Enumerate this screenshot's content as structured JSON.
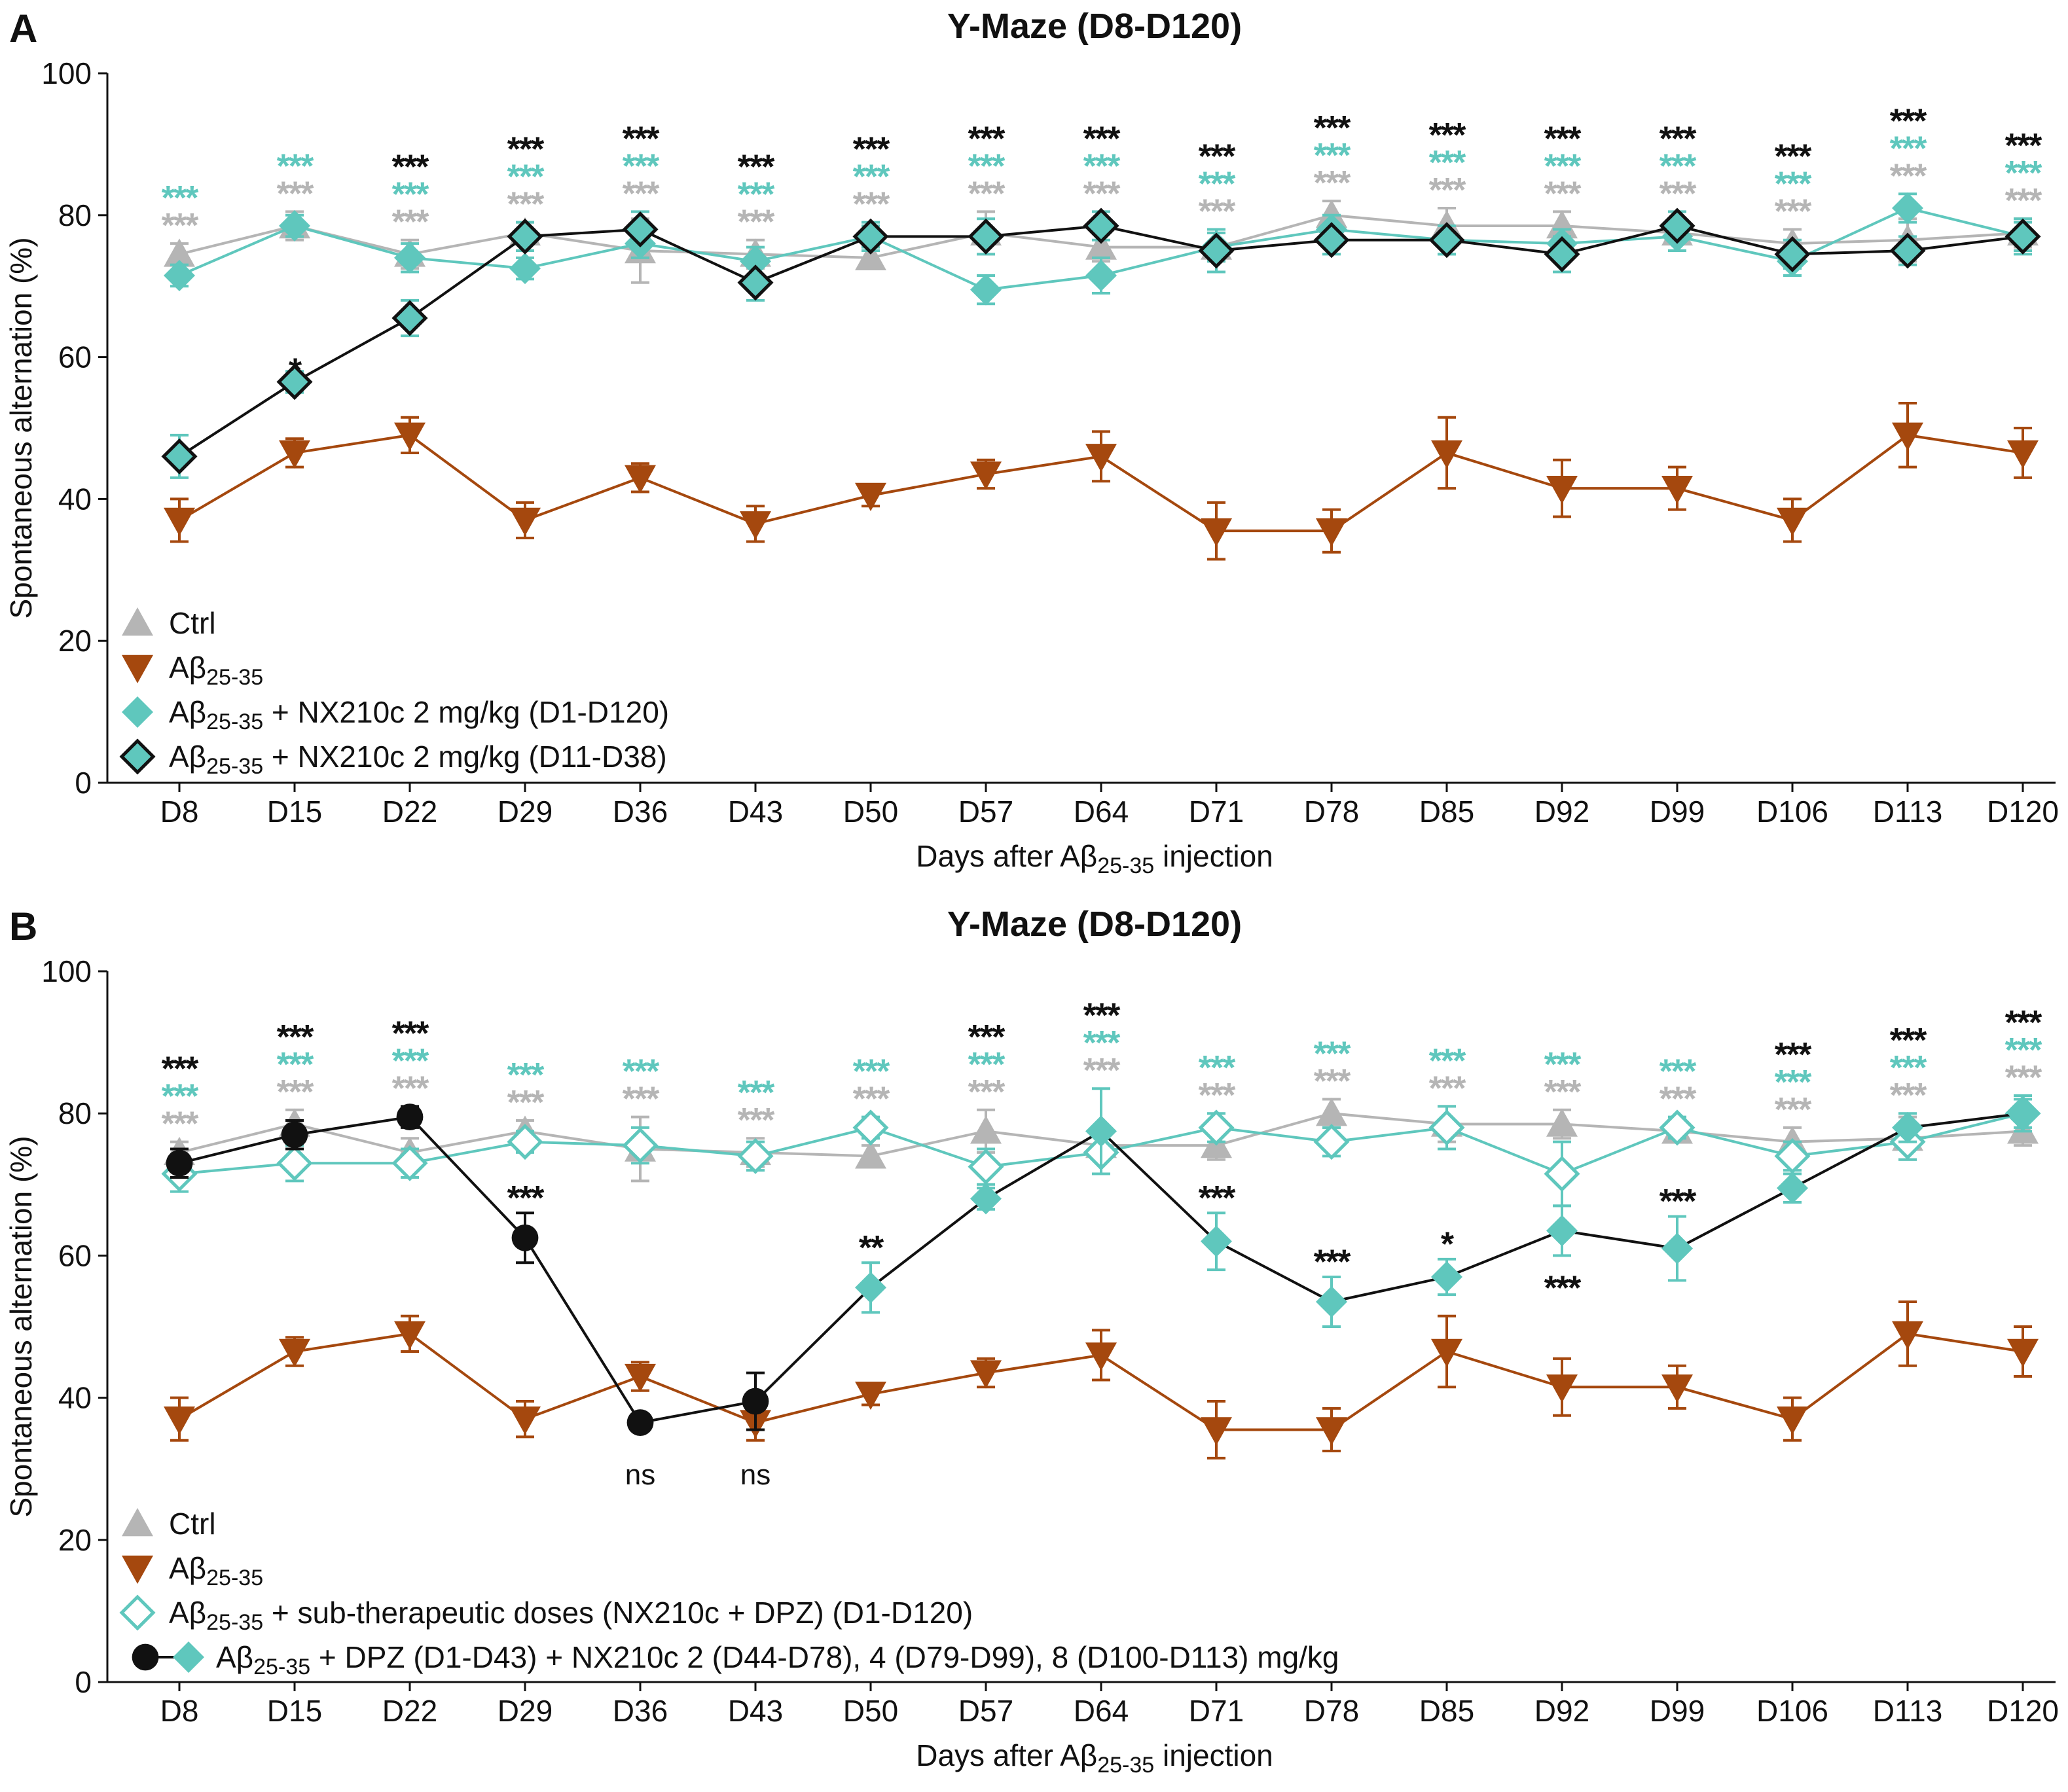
{
  "chart_data": [
    {
      "panel_label": "A",
      "type": "line",
      "title": "Y-Maze (D8-D120)",
      "ylabel": "Spontaneous alternation (%)",
      "xlabel": {
        "pre": "Days after Aβ",
        "sub": "25-35",
        "post": " injection"
      },
      "ylim": [
        0,
        100
      ],
      "yticks": [
        0,
        20,
        40,
        60,
        80,
        100
      ],
      "categories": [
        "D8",
        "D15",
        "D22",
        "D29",
        "D36",
        "D43",
        "D50",
        "D57",
        "D64",
        "D71",
        "D78",
        "D85",
        "D92",
        "D99",
        "D106",
        "D113",
        "D120"
      ],
      "series": [
        {
          "key": "ctrl",
          "name": "Ctrl",
          "legend": {
            "pre": "Ctrl",
            "sub": "",
            "post": ""
          },
          "color": "#b5b5b5",
          "marker": "triangle-up",
          "values": [
            74.5,
            78.5,
            74.5,
            77.5,
            75,
            74.5,
            74,
            77.5,
            75.5,
            75.5,
            80,
            78.5,
            78.5,
            77.5,
            76,
            76.5,
            77.5
          ],
          "errors": [
            1.5,
            2,
            2,
            1.5,
            4.5,
            2,
            1.5,
            3,
            2,
            2,
            2,
            2.5,
            2,
            1.5,
            2,
            3,
            2
          ]
        },
        {
          "key": "abeta",
          "name": "Aβ25-35",
          "legend": {
            "pre": "Aβ",
            "sub": "25-35",
            "post": ""
          },
          "color": "#a5480e",
          "marker": "triangle-down",
          "values": [
            37,
            46.5,
            49,
            37,
            43,
            36.5,
            40.5,
            43.5,
            46,
            35.5,
            35.5,
            46.5,
            41.5,
            41.5,
            37,
            49,
            46.5
          ],
          "errors": [
            3,
            2,
            2.5,
            2.5,
            2,
            2.5,
            1.5,
            2,
            3.5,
            4,
            3,
            5,
            4,
            3,
            3,
            4.5,
            3.5
          ]
        },
        {
          "key": "nx_full",
          "name": "Aβ25-35 + NX210c 2 mg/kg (D1-D120)",
          "legend": {
            "pre": "Aβ",
            "sub": "25-35",
            "post": " + NX210c 2 mg/kg (D1-D120)"
          },
          "color": "#5fc7bd",
          "marker": "diamond",
          "values": [
            71.5,
            78.5,
            74,
            72.5,
            76,
            73.5,
            77,
            69.5,
            71.5,
            75.5,
            78,
            76.5,
            76,
            77,
            73.5,
            81,
            77
          ],
          "errors": [
            1.5,
            1.5,
            2,
            1.5,
            2,
            2,
            1.5,
            2,
            2.5,
            2,
            2,
            2,
            2,
            2,
            2,
            2,
            2
          ]
        },
        {
          "key": "nx_short",
          "name": "Aβ25-35 + NX210c 2 mg/kg (D11-D38)",
          "legend": {
            "pre": "Aβ",
            "sub": "25-35",
            "post": " + NX210c 2 mg/kg (D11-D38)"
          },
          "color": "#5fc7bd",
          "edge": "#111111",
          "marker": "diamond-outlined",
          "values": [
            46,
            56.5,
            65.5,
            77,
            78,
            70.5,
            77,
            77,
            78.5,
            75,
            76.5,
            76.5,
            74.5,
            78.5,
            74.5,
            75,
            77
          ],
          "errors": [
            3,
            1.5,
            2.5,
            2,
            2.5,
            2.5,
            2,
            2.5,
            2,
            3,
            2,
            2,
            2.5,
            2,
            2,
            2,
            2.5
          ]
        }
      ],
      "annotations": [
        {
          "cat": 0,
          "rows": [
            [
              "grey",
              "***"
            ],
            [
              "teal",
              "***"
            ]
          ]
        },
        {
          "cat": 1,
          "rows": [
            [
              "grey",
              "***"
            ],
            [
              "teal",
              "***"
            ]
          ]
        },
        {
          "cat": 1,
          "rows": [
            [
              "black",
              "*"
            ]
          ],
          "below": true,
          "y": 56.5
        },
        {
          "cat": 2,
          "rows": [
            [
              "grey",
              "***"
            ],
            [
              "teal",
              "***"
            ],
            [
              "black",
              "***"
            ]
          ]
        },
        {
          "cat": 3,
          "rows": [
            [
              "grey",
              "***"
            ],
            [
              "teal",
              "***"
            ],
            [
              "black",
              "***"
            ]
          ]
        },
        {
          "cat": 4,
          "rows": [
            [
              "grey",
              "***"
            ],
            [
              "teal",
              "***"
            ],
            [
              "black",
              "***"
            ]
          ]
        },
        {
          "cat": 5,
          "rows": [
            [
              "grey",
              "***"
            ],
            [
              "teal",
              "***"
            ],
            [
              "black",
              "***"
            ]
          ]
        },
        {
          "cat": 6,
          "rows": [
            [
              "grey",
              "***"
            ],
            [
              "teal",
              "***"
            ],
            [
              "black",
              "***"
            ]
          ]
        },
        {
          "cat": 7,
          "rows": [
            [
              "grey",
              "***"
            ],
            [
              "teal",
              "***"
            ],
            [
              "black",
              "***"
            ]
          ]
        },
        {
          "cat": 8,
          "rows": [
            [
              "grey",
              "***"
            ],
            [
              "teal",
              "***"
            ],
            [
              "black",
              "***"
            ]
          ]
        },
        {
          "cat": 9,
          "rows": [
            [
              "grey",
              "***"
            ],
            [
              "teal",
              "***"
            ],
            [
              "black",
              "***"
            ]
          ]
        },
        {
          "cat": 10,
          "rows": [
            [
              "grey",
              "***"
            ],
            [
              "teal",
              "***"
            ],
            [
              "black",
              "***"
            ]
          ]
        },
        {
          "cat": 11,
          "rows": [
            [
              "grey",
              "***"
            ],
            [
              "teal",
              "***"
            ],
            [
              "black",
              "***"
            ]
          ]
        },
        {
          "cat": 12,
          "rows": [
            [
              "grey",
              "***"
            ],
            [
              "teal",
              "***"
            ],
            [
              "black",
              "***"
            ]
          ]
        },
        {
          "cat": 13,
          "rows": [
            [
              "grey",
              "***"
            ],
            [
              "teal",
              "***"
            ],
            [
              "black",
              "***"
            ]
          ]
        },
        {
          "cat": 14,
          "rows": [
            [
              "grey",
              "***"
            ],
            [
              "teal",
              "***"
            ],
            [
              "black",
              "***"
            ]
          ]
        },
        {
          "cat": 15,
          "rows": [
            [
              "grey",
              "***"
            ],
            [
              "teal",
              "***"
            ],
            [
              "black",
              "***"
            ]
          ]
        },
        {
          "cat": 16,
          "rows": [
            [
              "grey",
              "***"
            ],
            [
              "teal",
              "***"
            ],
            [
              "black",
              "***"
            ]
          ]
        }
      ]
    },
    {
      "panel_label": "B",
      "type": "line",
      "title": "Y-Maze (D8-D120)",
      "ylabel": "Spontaneous alternation (%)",
      "xlabel": {
        "pre": "Days after Aβ",
        "sub": "25-35",
        "post": " injection"
      },
      "ylim": [
        0,
        100
      ],
      "yticks": [
        0,
        20,
        40,
        60,
        80,
        100
      ],
      "categories": [
        "D8",
        "D15",
        "D22",
        "D29",
        "D36",
        "D43",
        "D50",
        "D57",
        "D64",
        "D71",
        "D78",
        "D85",
        "D92",
        "D99",
        "D106",
        "D113",
        "D120"
      ],
      "series": [
        {
          "key": "ctrl",
          "name": "Ctrl",
          "legend": {
            "pre": "Ctrl",
            "sub": "",
            "post": ""
          },
          "color": "#b5b5b5",
          "marker": "triangle-up",
          "values": [
            74.5,
            78.5,
            74.5,
            77.5,
            75,
            74.5,
            74,
            77.5,
            75.5,
            75.5,
            80,
            78.5,
            78.5,
            77.5,
            76,
            76.5,
            77.5
          ],
          "errors": [
            1.5,
            2,
            2,
            1.5,
            4.5,
            2,
            1.5,
            3,
            2,
            2,
            2,
            2.5,
            2,
            1.5,
            2,
            3,
            2
          ]
        },
        {
          "key": "abeta",
          "name": "Aβ25-35",
          "legend": {
            "pre": "Aβ",
            "sub": "25-35",
            "post": ""
          },
          "color": "#a5480e",
          "marker": "triangle-down",
          "values": [
            37,
            46.5,
            49,
            37,
            43,
            36.5,
            40.5,
            43.5,
            46,
            35.5,
            35.5,
            46.5,
            41.5,
            41.5,
            37,
            49,
            46.5
          ],
          "errors": [
            3,
            2,
            2.5,
            2.5,
            2,
            2.5,
            1.5,
            2,
            3.5,
            4,
            3,
            5,
            4,
            3,
            3,
            4.5,
            3.5
          ]
        },
        {
          "key": "subther",
          "name": "Aβ25-35 + sub-therapeutic doses (NX210c + DPZ) (D1-D120)",
          "legend": {
            "pre": "Aβ",
            "sub": "25-35",
            "post": " + sub-therapeutic doses (NX210c + DPZ) (D1-D120)"
          },
          "color": "#5fc7bd",
          "marker": "diamond-open",
          "values": [
            71.5,
            73,
            73,
            76,
            75.5,
            74,
            78,
            72.5,
            74.5,
            78,
            76,
            78,
            71.5,
            78,
            74,
            76,
            80
          ],
          "errors": [
            2.5,
            2.5,
            2,
            1.5,
            2.5,
            2,
            1.5,
            2.5,
            3,
            2,
            2,
            3,
            4.5,
            1.5,
            2,
            2.5,
            2.5
          ]
        },
        {
          "key": "combo",
          "name": "Aβ25-35 + DPZ (D1-D43) + NX210c 2 (D44-D78), 4 (D79-D99), 8 (D100-D113) mg/kg",
          "legend": {
            "pre": "Aβ",
            "sub": "25-35",
            "post": " + DPZ (D1-D43) + NX210c 2 (D44-D78), 4 (D79-D99), 8 (D100-D113) mg/kg"
          },
          "color": "#111111",
          "marker": "circle-then-diamond",
          "switch_index": 6,
          "values": [
            73,
            77,
            79.5,
            62.5,
            36.5,
            39.5,
            55.5,
            68,
            77.5,
            62,
            53.5,
            57,
            63.5,
            61,
            69.5,
            78,
            80
          ],
          "errors": [
            2,
            2,
            1.5,
            3.5,
            1,
            4,
            3.5,
            1.5,
            6,
            4,
            3.5,
            2.5,
            3.5,
            4.5,
            2,
            2,
            2
          ]
        }
      ],
      "annotations": [
        {
          "cat": 0,
          "rows": [
            [
              "grey",
              "***"
            ],
            [
              "teal",
              "***"
            ],
            [
              "black",
              "***"
            ]
          ]
        },
        {
          "cat": 1,
          "rows": [
            [
              "grey",
              "***"
            ],
            [
              "teal",
              "***"
            ],
            [
              "black",
              "***"
            ]
          ]
        },
        {
          "cat": 2,
          "rows": [
            [
              "grey",
              "***"
            ],
            [
              "teal",
              "***"
            ],
            [
              "black",
              "***"
            ]
          ]
        },
        {
          "cat": 3,
          "rows": [
            [
              "grey",
              "***"
            ],
            [
              "teal",
              "***"
            ]
          ]
        },
        {
          "cat": 3,
          "rows": [
            [
              "black",
              "***"
            ]
          ],
          "below": true,
          "y": 66.5
        },
        {
          "cat": 4,
          "rows": [
            [
              "grey",
              "***"
            ],
            [
              "teal",
              "***"
            ]
          ]
        },
        {
          "cat": 4,
          "rows": [
            [
              "black",
              "ns"
            ]
          ],
          "under": true,
          "y": 31.5
        },
        {
          "cat": 5,
          "rows": [
            [
              "grey",
              "***"
            ],
            [
              "teal",
              "***"
            ]
          ]
        },
        {
          "cat": 5,
          "rows": [
            [
              "black",
              "ns"
            ]
          ],
          "under": true,
          "y": 31.5
        },
        {
          "cat": 6,
          "rows": [
            [
              "grey",
              "***"
            ],
            [
              "teal",
              "***"
            ]
          ]
        },
        {
          "cat": 6,
          "rows": [
            [
              "black",
              "**"
            ]
          ],
          "below": true,
          "y": 59.5
        },
        {
          "cat": 7,
          "rows": [
            [
              "grey",
              "***"
            ],
            [
              "teal",
              "***"
            ],
            [
              "black",
              "***"
            ]
          ]
        },
        {
          "cat": 8,
          "rows": [
            [
              "grey",
              "***"
            ],
            [
              "teal",
              "***"
            ],
            [
              "black",
              "***"
            ]
          ]
        },
        {
          "cat": 9,
          "rows": [
            [
              "grey",
              "***"
            ],
            [
              "teal",
              "***"
            ]
          ]
        },
        {
          "cat": 9,
          "rows": [
            [
              "black",
              "***"
            ]
          ],
          "below": true,
          "y": 66.5
        },
        {
          "cat": 10,
          "rows": [
            [
              "grey",
              "***"
            ],
            [
              "teal",
              "***"
            ]
          ]
        },
        {
          "cat": 10,
          "rows": [
            [
              "black",
              "***"
            ]
          ],
          "below": true,
          "y": 57.5
        },
        {
          "cat": 11,
          "rows": [
            [
              "grey",
              "***"
            ],
            [
              "teal",
              "***"
            ]
          ]
        },
        {
          "cat": 11,
          "rows": [
            [
              "black",
              "*"
            ]
          ],
          "below": true,
          "y": 60
        },
        {
          "cat": 12,
          "rows": [
            [
              "grey",
              "***"
            ],
            [
              "teal",
              "***"
            ]
          ]
        },
        {
          "cat": 12,
          "rows": [
            [
              "black",
              "***"
            ]
          ],
          "under": true,
          "y": 57.5
        },
        {
          "cat": 13,
          "rows": [
            [
              "grey",
              "***"
            ],
            [
              "teal",
              "***"
            ]
          ]
        },
        {
          "cat": 13,
          "rows": [
            [
              "black",
              "***"
            ]
          ],
          "below": true,
          "y": 66
        },
        {
          "cat": 14,
          "rows": [
            [
              "grey",
              "***"
            ],
            [
              "teal",
              "***"
            ],
            [
              "black",
              "***"
            ]
          ]
        },
        {
          "cat": 15,
          "rows": [
            [
              "grey",
              "***"
            ],
            [
              "teal",
              "***"
            ],
            [
              "black",
              "***"
            ]
          ]
        },
        {
          "cat": 16,
          "rows": [
            [
              "grey",
              "***"
            ],
            [
              "teal",
              "***"
            ],
            [
              "black",
              "***"
            ]
          ]
        }
      ]
    }
  ]
}
